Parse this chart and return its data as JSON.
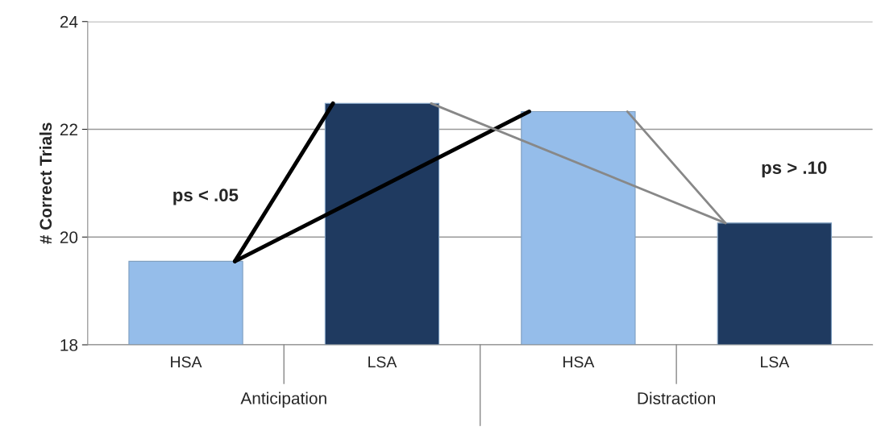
{
  "chart_data": {
    "type": "bar",
    "categories": [
      "HSA",
      "LSA",
      "HSA",
      "LSA"
    ],
    "values": [
      19.55,
      22.48,
      22.33,
      20.26
    ],
    "colors": [
      "#95bdea",
      "#1f3a60",
      "#95bdea",
      "#1f3a60"
    ],
    "ylabel": "# Correct Trials",
    "ylim": [
      18,
      24
    ],
    "yticks": [
      18,
      20,
      22,
      24
    ],
    "grid": "y",
    "annotations": [
      "ps < .05",
      "ps > .10",
      "Anticipation",
      "Distraction"
    ]
  }
}
